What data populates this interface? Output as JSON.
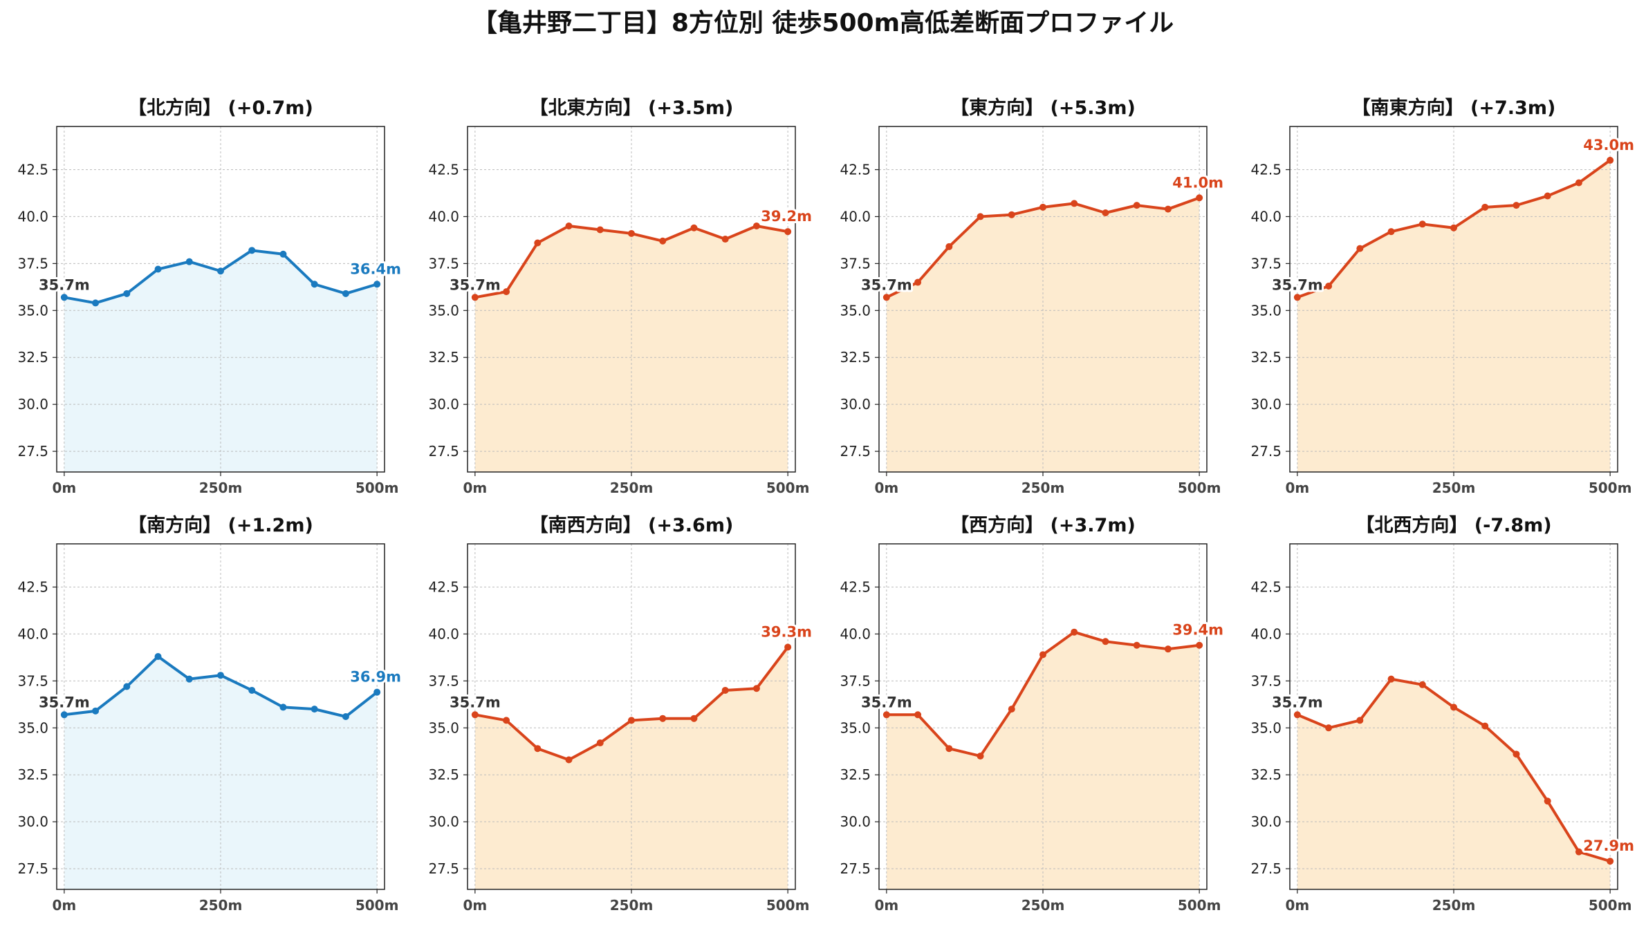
{
  "title": "【亀井野二丁目】8方位別 徒歩500m高低差断面プロファイル",
  "colors": {
    "up": "#d9441b",
    "up_fill": "#fdebd0",
    "flat": "#1a7abf",
    "flat_fill": "#eaf6fb",
    "grid": "#bbbbbb"
  },
  "chart_data": [
    {
      "type": "area",
      "title": "【北方向】 (+0.7m)",
      "color_key": "flat",
      "x": [
        0,
        50,
        100,
        150,
        200,
        250,
        300,
        350,
        400,
        450,
        500
      ],
      "values": [
        35.7,
        35.4,
        35.9,
        37.2,
        37.6,
        37.1,
        38.2,
        38.0,
        36.4,
        35.9,
        36.4
      ],
      "start_label": "35.7m",
      "end_label": "36.4m",
      "xticks": [
        "0m",
        "250m",
        "500m"
      ],
      "yticks": [
        "27.5",
        "30.0",
        "32.5",
        "35.0",
        "37.5",
        "40.0",
        "42.5"
      ],
      "ylim": [
        26.4,
        44.8
      ],
      "xlim": [
        -12,
        512
      ],
      "grid": true
    },
    {
      "type": "area",
      "title": "【北東方向】 (+3.5m)",
      "color_key": "up",
      "x": [
        0,
        50,
        100,
        150,
        200,
        250,
        300,
        350,
        400,
        450,
        500
      ],
      "values": [
        35.7,
        36.0,
        38.6,
        39.5,
        39.3,
        39.1,
        38.7,
        39.4,
        38.8,
        39.5,
        39.2
      ],
      "start_label": "35.7m",
      "end_label": "39.2m",
      "xticks": [
        "0m",
        "250m",
        "500m"
      ],
      "yticks": [
        "27.5",
        "30.0",
        "32.5",
        "35.0",
        "37.5",
        "40.0",
        "42.5"
      ],
      "ylim": [
        26.4,
        44.8
      ],
      "xlim": [
        -12,
        512
      ],
      "grid": true
    },
    {
      "type": "area",
      "title": "【東方向】 (+5.3m)",
      "color_key": "up",
      "x": [
        0,
        50,
        100,
        150,
        200,
        250,
        300,
        350,
        400,
        450,
        500
      ],
      "values": [
        35.7,
        36.5,
        38.4,
        40.0,
        40.1,
        40.5,
        40.7,
        40.2,
        40.6,
        40.4,
        41.0
      ],
      "start_label": "35.7m",
      "end_label": "41.0m",
      "xticks": [
        "0m",
        "250m",
        "500m"
      ],
      "yticks": [
        "27.5",
        "30.0",
        "32.5",
        "35.0",
        "37.5",
        "40.0",
        "42.5"
      ],
      "ylim": [
        26.4,
        44.8
      ],
      "xlim": [
        -12,
        512
      ],
      "grid": true
    },
    {
      "type": "area",
      "title": "【南東方向】 (+7.3m)",
      "color_key": "up",
      "x": [
        0,
        50,
        100,
        150,
        200,
        250,
        300,
        350,
        400,
        450,
        500
      ],
      "values": [
        35.7,
        36.3,
        38.3,
        39.2,
        39.6,
        39.4,
        40.5,
        40.6,
        41.1,
        41.8,
        43.0
      ],
      "start_label": "35.7m",
      "end_label": "43.0m",
      "xticks": [
        "0m",
        "250m",
        "500m"
      ],
      "yticks": [
        "27.5",
        "30.0",
        "32.5",
        "35.0",
        "37.5",
        "40.0",
        "42.5"
      ],
      "ylim": [
        26.4,
        44.8
      ],
      "xlim": [
        -12,
        512
      ],
      "grid": true
    },
    {
      "type": "area",
      "title": "【南方向】 (+1.2m)",
      "color_key": "flat",
      "x": [
        0,
        50,
        100,
        150,
        200,
        250,
        300,
        350,
        400,
        450,
        500
      ],
      "values": [
        35.7,
        35.9,
        37.2,
        38.8,
        37.6,
        37.8,
        37.0,
        36.1,
        36.0,
        35.6,
        36.9
      ],
      "start_label": "35.7m",
      "end_label": "36.9m",
      "xticks": [
        "0m",
        "250m",
        "500m"
      ],
      "yticks": [
        "27.5",
        "30.0",
        "32.5",
        "35.0",
        "37.5",
        "40.0",
        "42.5"
      ],
      "ylim": [
        26.4,
        44.8
      ],
      "xlim": [
        -12,
        512
      ],
      "grid": true
    },
    {
      "type": "area",
      "title": "【南西方向】 (+3.6m)",
      "color_key": "up",
      "x": [
        0,
        50,
        100,
        150,
        200,
        250,
        300,
        350,
        400,
        450,
        500
      ],
      "values": [
        35.7,
        35.4,
        33.9,
        33.3,
        34.2,
        35.4,
        35.5,
        35.5,
        37.0,
        37.1,
        39.3
      ],
      "start_label": "35.7m",
      "end_label": "39.3m",
      "xticks": [
        "0m",
        "250m",
        "500m"
      ],
      "yticks": [
        "27.5",
        "30.0",
        "32.5",
        "35.0",
        "37.5",
        "40.0",
        "42.5"
      ],
      "ylim": [
        26.4,
        44.8
      ],
      "xlim": [
        -12,
        512
      ],
      "grid": true
    },
    {
      "type": "area",
      "title": "【西方向】 (+3.7m)",
      "color_key": "up",
      "x": [
        0,
        50,
        100,
        150,
        200,
        250,
        300,
        350,
        400,
        450,
        500
      ],
      "values": [
        35.7,
        35.7,
        33.9,
        33.5,
        36.0,
        38.9,
        40.1,
        39.6,
        39.4,
        39.2,
        39.4
      ],
      "start_label": "35.7m",
      "end_label": "39.4m",
      "xticks": [
        "0m",
        "250m",
        "500m"
      ],
      "yticks": [
        "27.5",
        "30.0",
        "32.5",
        "35.0",
        "37.5",
        "40.0",
        "42.5"
      ],
      "ylim": [
        26.4,
        44.8
      ],
      "xlim": [
        -12,
        512
      ],
      "grid": true
    },
    {
      "type": "area",
      "title": "【北西方向】 (-7.8m)",
      "color_key": "up",
      "x": [
        0,
        50,
        100,
        150,
        200,
        250,
        300,
        350,
        400,
        450,
        500
      ],
      "values": [
        35.7,
        35.0,
        35.4,
        37.6,
        37.3,
        36.1,
        35.1,
        33.6,
        31.1,
        28.4,
        27.9
      ],
      "start_label": "35.7m",
      "end_label": "27.9m",
      "xticks": [
        "0m",
        "250m",
        "500m"
      ],
      "yticks": [
        "27.5",
        "30.0",
        "32.5",
        "35.0",
        "37.5",
        "40.0",
        "42.5"
      ],
      "ylim": [
        26.4,
        44.8
      ],
      "xlim": [
        -12,
        512
      ],
      "grid": true
    }
  ]
}
